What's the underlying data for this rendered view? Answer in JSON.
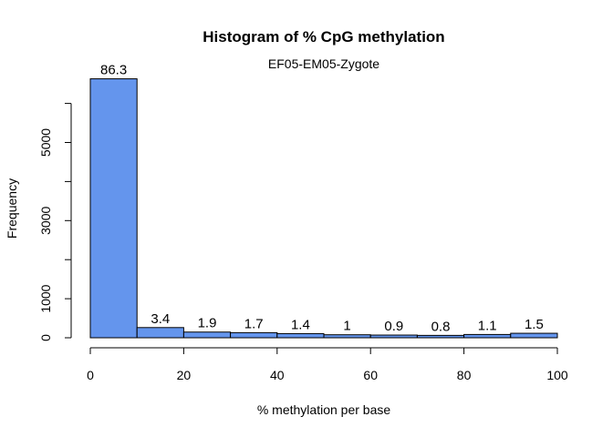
{
  "chart_data": {
    "type": "bar",
    "title": "Histogram of % CpG methylation",
    "subtitle": "EF05-EM05-Zygote",
    "xlabel": "% methylation per base",
    "ylabel": "Frequency",
    "xlim": [
      0,
      100
    ],
    "ylim": [
      0,
      6000
    ],
    "x_ticks": [
      0,
      20,
      40,
      60,
      80,
      100
    ],
    "y_ticks": [
      0,
      1000,
      2000,
      3000,
      4000,
      5000,
      6000
    ],
    "y_tick_labels": [
      "0",
      "1000",
      "",
      "3000",
      "",
      "5000",
      ""
    ],
    "bins": [
      [
        0,
        10
      ],
      [
        10,
        20
      ],
      [
        20,
        30
      ],
      [
        30,
        40
      ],
      [
        40,
        50
      ],
      [
        50,
        60
      ],
      [
        60,
        70
      ],
      [
        70,
        80
      ],
      [
        80,
        90
      ],
      [
        90,
        100
      ]
    ],
    "values": [
      6630,
      261,
      146,
      131,
      107,
      77,
      69,
      61,
      84,
      115
    ],
    "data_labels": [
      "86.3",
      "3.4",
      "1.9",
      "1.7",
      "1.4",
      "1",
      "0.9",
      "0.8",
      "1.1",
      "1.5"
    ],
    "bar_color": "#6495ED",
    "grid": false,
    "legend": "none"
  }
}
